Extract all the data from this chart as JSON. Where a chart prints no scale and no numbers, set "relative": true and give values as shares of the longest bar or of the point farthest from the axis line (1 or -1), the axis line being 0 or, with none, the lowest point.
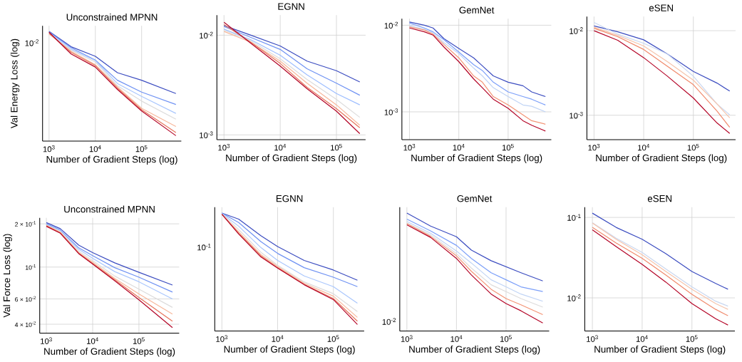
{
  "chart_data": [
    {
      "type": "line",
      "title": "Unconstrained MPNN",
      "xlabel": "Number of Gradient Steps (log)",
      "ylabel": "Val Energy Loss (log)",
      "log": "x",
      "grid": "x",
      "relative": true,
      "xlim": [
        724,
        720000
      ],
      "xticks": [
        {
          "value": 1000,
          "label": "10$^{3}$"
        },
        {
          "value": 10000,
          "label": "10$^{4}$"
        },
        {
          "value": 100000,
          "label": "10$^{5}$"
        }
      ],
      "annotations": [
        "10$^{-2}$"
      ],
      "x": [
        1000,
        3000,
        10000,
        30000,
        100000,
        550000
      ],
      "series": [
        {
          "color": "#3b4cc0",
          "values": [
            1,
            0.859,
            0.772,
            0.623,
            0.554,
            0.433
          ]
        },
        {
          "color": "#6f92f3",
          "values": [
            0.994,
            0.85,
            0.738,
            0.554,
            0.446,
            0.333
          ]
        },
        {
          "color": "#aac7fd",
          "values": [
            0.984,
            0.836,
            0.733,
            0.524,
            0.407,
            0.252
          ]
        },
        {
          "color": "#dddcdc",
          "values": [
            0.975,
            0.827,
            0.72,
            0.504,
            0.364,
            0.199
          ]
        },
        {
          "color": "#f7b89c",
          "values": [
            0.975,
            0.818,
            0.695,
            0.493,
            0.298,
            0.133
          ]
        },
        {
          "color": "#e7745b",
          "values": [
            0.984,
            0.808,
            0.688,
            0.482,
            0.285,
            0.078
          ]
        },
        {
          "color": "#b40426",
          "values": [
            0.991,
            0.793,
            0.674,
            0.47,
            0.274,
            0.049
          ]
        }
      ]
    },
    {
      "type": "line",
      "title": "EGNN",
      "xlabel": "Number of Gradient Steps (log)",
      "log": "xy",
      "grid": true,
      "xlim": [
        747,
        330000
      ],
      "ylim": [
        0.000896,
        0.0159
      ],
      "xticks": [
        {
          "value": 1000,
          "label": "10$^{3}$"
        },
        {
          "value": 10000,
          "label": "10$^{4}$"
        },
        {
          "value": 100000,
          "label": "10$^{5}$"
        }
      ],
      "yticks": [
        {
          "value": 0.001,
          "label": "10$^{-3}$"
        },
        {
          "value": 0.01,
          "label": "10$^{-2}$"
        }
      ],
      "x": [
        1000,
        3000,
        10000,
        30000,
        100000,
        260000
      ],
      "series": [
        {
          "color": "#3b4cc0",
          "values": [
            0.0125,
            0.01,
            0.0078,
            0.0055,
            0.0044,
            0.0034
          ]
        },
        {
          "color": "#6f92f3",
          "values": [
            0.0122,
            0.0095,
            0.0072,
            0.0046,
            0.0033,
            0.0025
          ]
        },
        {
          "color": "#9ebeff",
          "values": [
            0.0115,
            0.009,
            0.0063,
            0.004,
            0.0026,
            0.002
          ]
        },
        {
          "color": "#dddcdc",
          "values": [
            0.0112,
            0.0088,
            0.0058,
            0.0036,
            0.00227,
            0.0015
          ]
        },
        {
          "color": "#f7b89c",
          "values": [
            0.0109,
            0.0085,
            0.0055,
            0.0033,
            0.002,
            0.00125
          ]
        },
        {
          "color": "#e7745b",
          "values": [
            0.0128,
            0.0085,
            0.0052,
            0.003,
            0.00183,
            0.00118
          ]
        },
        {
          "color": "#b40426",
          "values": [
            0.0135,
            0.0083,
            0.0049,
            0.0029,
            0.00173,
            0.00103
          ]
        }
      ]
    },
    {
      "type": "line",
      "title": "GemNet",
      "xlabel": "Number of Gradient Steps (log)",
      "log": "xy",
      "grid": true,
      "xlim": [
        702,
        750000
      ],
      "ylim": [
        0.000478,
        0.0119
      ],
      "xticks": [
        {
          "value": 1000,
          "label": "10$^{3}$"
        },
        {
          "value": 10000,
          "label": "10$^{4}$"
        },
        {
          "value": 100000,
          "label": "10$^{5}$"
        }
      ],
      "yticks": [
        {
          "value": 0.001,
          "label": "10$^{-3}$"
        },
        {
          "value": 0.01,
          "label": "10$^{-2}$"
        }
      ],
      "x": [
        1000,
        2000,
        3000,
        5000,
        10000,
        20000,
        30000,
        50000,
        100000,
        200000,
        300000,
        570000
      ],
      "series": [
        {
          "color": "#3b4cc0",
          "values": [
            0.0109,
            0.01,
            0.0093,
            0.007,
            0.0054,
            0.0042,
            0.0034,
            0.0026,
            0.0022,
            0.002,
            0.0017,
            0.0015
          ]
        },
        {
          "color": "#7b9ff9",
          "values": [
            0.0106,
            0.0093,
            0.0084,
            0.0068,
            0.0049,
            0.0035,
            0.003,
            0.0022,
            0.0017,
            0.0015,
            0.0014,
            0.0012
          ]
        },
        {
          "color": "#c0d4f5",
          "values": [
            0.0099,
            0.009,
            0.0082,
            0.0063,
            0.0047,
            0.0032,
            0.0026,
            0.0019,
            0.0015,
            0.0012,
            0.00116,
            0.001
          ]
        },
        {
          "color": "#f39475",
          "values": [
            0.0096,
            0.0088,
            0.0079,
            0.006,
            0.0042,
            0.0026,
            0.0022,
            0.0015,
            0.0012,
            0.00092,
            0.00079,
            0.00072
          ]
        },
        {
          "color": "#b40426",
          "values": [
            0.0093,
            0.0084,
            0.0077,
            0.0056,
            0.0038,
            0.0024,
            0.0019,
            0.0014,
            0.0011,
            0.00079,
            0.0007,
            0.0006
          ]
        }
      ]
    },
    {
      "type": "line",
      "title": "eSEN",
      "xlabel": "Number of Gradient Steps (log)",
      "log": "xy",
      "grid": true,
      "xlim": [
        718,
        710000
      ],
      "ylim": [
        0.000515,
        0.0147
      ],
      "xticks": [
        {
          "value": 1000,
          "label": "10$^{3}$"
        },
        {
          "value": 10000,
          "label": "10$^{4}$"
        },
        {
          "value": 100000,
          "label": "10$^{5}$"
        }
      ],
      "yticks": [
        {
          "value": 0.001,
          "label": "10$^{-3}$"
        },
        {
          "value": 0.01,
          "label": "10$^{-2}$"
        }
      ],
      "x": [
        1000,
        3000,
        10000,
        30000,
        100000,
        300000,
        540000
      ],
      "series": [
        {
          "color": "#3b4cc0",
          "values": [
            0.0114,
            0.0097,
            0.0078,
            0.0053,
            0.0033,
            0.0024,
            0.00193
          ]
        },
        {
          "color": "#c9d7f0",
          "values": [
            0.0125,
            0.0091,
            0.0071,
            0.0053,
            0.0029,
            0.00136,
            0.00101
          ]
        },
        {
          "color": "#f5c4ac",
          "values": [
            0.011,
            0.0088,
            0.0066,
            0.0043,
            0.0026,
            0.00136,
            0.00093
          ]
        },
        {
          "color": "#f08a6c",
          "values": [
            0.0107,
            0.0085,
            0.006,
            0.0038,
            0.0023,
            0.00112,
            0.00072
          ]
        },
        {
          "color": "#b40426",
          "values": [
            0.01,
            0.0077,
            0.0048,
            0.0029,
            0.0016,
            0.00081,
            0.00061
          ]
        }
      ]
    },
    {
      "type": "line",
      "title": "Unconstrained MPNN",
      "xlabel": "Number of Gradient Steps (log)",
      "ylabel": "Val Force Loss (log)",
      "log": "xy",
      "grid": true,
      "xlim": [
        718,
        740000
      ],
      "ylim": [
        0.0347,
        0.22
      ],
      "xticks": [
        {
          "value": 1000,
          "label": "10$^{3}$"
        },
        {
          "value": 10000,
          "label": "10$^{4}$"
        },
        {
          "value": 100000,
          "label": "10$^{5}$"
        }
      ],
      "yticks": [
        {
          "value": 0.04,
          "label": "4 × 10$^{-2}$"
        },
        {
          "value": 0.06,
          "label": "6 × 10$^{-2}$"
        },
        {
          "value": 0.1,
          "label": "10$^{-1}$"
        },
        {
          "value": 0.2,
          "label": "2 × 10$^{-1}$"
        }
      ],
      "x": [
        1000,
        2000,
        5000,
        10000,
        30000,
        100000,
        530000
      ],
      "series": [
        {
          "color": "#3b4cc0",
          "values": [
            0.204,
            0.185,
            0.142,
            0.126,
            0.107,
            0.092,
            0.075
          ]
        },
        {
          "color": "#6f92f3",
          "values": [
            0.2,
            0.181,
            0.136,
            0.12,
            0.099,
            0.085,
            0.067
          ]
        },
        {
          "color": "#aac7fd",
          "values": [
            0.198,
            0.179,
            0.133,
            0.115,
            0.093,
            0.079,
            0.06
          ]
        },
        {
          "color": "#dddcdc",
          "values": [
            0.196,
            0.177,
            0.129,
            0.111,
            0.0866,
            0.0702,
            0.0524
          ]
        },
        {
          "color": "#f7b89c",
          "values": [
            0.195,
            0.175,
            0.126,
            0.108,
            0.0833,
            0.065,
            0.0471
          ]
        },
        {
          "color": "#e7745b",
          "values": [
            0.194,
            0.173,
            0.125,
            0.106,
            0.0817,
            0.0614,
            0.042
          ]
        },
        {
          "color": "#b40426",
          "values": [
            0.192,
            0.172,
            0.124,
            0.105,
            0.0802,
            0.0591,
            0.0379
          ]
        }
      ]
    },
    {
      "type": "line",
      "title": "EGNN",
      "xlabel": "Number of Gradient Steps (log)",
      "log": "x",
      "grid": "x",
      "relative": true,
      "xlim": [
        745,
        357000
      ],
      "xticks": [
        {
          "value": 1000,
          "label": "10$^{3}$"
        },
        {
          "value": 10000,
          "label": "10$^{4}$"
        },
        {
          "value": 100000,
          "label": "10$^{5}$"
        }
      ],
      "annotations": [
        "10$^{-1}$"
      ],
      "x": [
        1000,
        2000,
        5000,
        10000,
        30000,
        100000,
        270000
      ],
      "series": [
        {
          "color": "#3b4cc0",
          "values": [
            1,
            0.949,
            0.808,
            0.716,
            0.598,
            0.517,
            0.43
          ]
        },
        {
          "color": "#6f92f3",
          "values": [
            1,
            0.92,
            0.758,
            0.658,
            0.537,
            0.456,
            0.376
          ]
        },
        {
          "color": "#aac7fd",
          "values": [
            0.996,
            0.889,
            0.708,
            0.598,
            0.467,
            0.376,
            0.235
          ]
        },
        {
          "color": "#dddcdc",
          "values": [
            0.993,
            0.86,
            0.668,
            0.557,
            0.416,
            0.316,
            0.165
          ]
        },
        {
          "color": "#f7b89c",
          "values": [
            0.99,
            0.84,
            0.648,
            0.547,
            0.405,
            0.295,
            0.115
          ]
        },
        {
          "color": "#e7745b",
          "values": [
            0.99,
            0.829,
            0.638,
            0.537,
            0.396,
            0.275,
            0.083
          ]
        },
        {
          "color": "#b40426",
          "values": [
            0.99,
            0.823,
            0.628,
            0.533,
            0.392,
            0.266,
            0.055
          ]
        }
      ]
    },
    {
      "type": "line",
      "title": "GemNet",
      "xlabel": "Number of Gradient Steps (log)",
      "log": "x",
      "grid": "x",
      "relative": true,
      "xlim": [
        718,
        740000
      ],
      "xticks": [
        {
          "value": 1000,
          "label": "10$^{3}$"
        },
        {
          "value": 10000,
          "label": "10$^{4}$"
        },
        {
          "value": 100000,
          "label": "10$^{5}$"
        }
      ],
      "annotations": [
        "10$^{-2}$"
      ],
      "x": [
        1000,
        3000,
        10000,
        20000,
        50000,
        100000,
        200000,
        550000
      ],
      "series": [
        {
          "color": "#3b4cc0",
          "values": [
            1,
            0.89,
            0.799,
            0.686,
            0.596,
            0.545,
            0.494,
            0.424
          ]
        },
        {
          "color": "#7b9ff9",
          "values": [
            0.949,
            0.849,
            0.726,
            0.615,
            0.494,
            0.434,
            0.374,
            0.334
          ]
        },
        {
          "color": "#c0d4f5",
          "values": [
            0.929,
            0.829,
            0.678,
            0.576,
            0.434,
            0.374,
            0.313,
            0.252
          ]
        },
        {
          "color": "#dddcdc",
          "values": [
            0.915,
            0.815,
            0.656,
            0.533,
            0.392,
            0.334,
            0.275,
            0.202
          ]
        },
        {
          "color": "#f39475",
          "values": [
            0.911,
            0.803,
            0.637,
            0.506,
            0.354,
            0.275,
            0.222,
            0.139
          ]
        },
        {
          "color": "#b40426",
          "values": [
            0.9,
            0.794,
            0.615,
            0.475,
            0.313,
            0.232,
            0.171,
            0.068
          ]
        }
      ]
    },
    {
      "type": "line",
      "title": "eSEN",
      "xlabel": "Number of Gradient Steps (log)",
      "log": "xy",
      "grid": true,
      "xlim": [
        703,
        730000
      ],
      "ylim": [
        0.00388,
        0.134
      ],
      "xticks": [
        {
          "value": 1000,
          "label": "10$^{3}$"
        },
        {
          "value": 10000,
          "label": "10$^{4}$"
        },
        {
          "value": 100000,
          "label": "10$^{5}$"
        }
      ],
      "yticks": [
        {
          "value": 0.01,
          "label": "10$^{-2}$"
        },
        {
          "value": 0.1,
          "label": "10$^{-1}$"
        }
      ],
      "x": [
        1000,
        3000,
        10000,
        30000,
        100000,
        300000,
        530000
      ],
      "series": [
        {
          "color": "#3b4cc0",
          "values": [
            0.113,
            0.0752,
            0.0535,
            0.0355,
            0.0213,
            0.0151,
            0.0128
          ]
        },
        {
          "color": "#c9d7f0",
          "values": [
            0.086,
            0.0553,
            0.0367,
            0.0228,
            0.0137,
            0.0091,
            0.0079
          ]
        },
        {
          "color": "#f5c4ac",
          "values": [
            0.085,
            0.0535,
            0.0343,
            0.0213,
            0.0128,
            0.0085,
            0.0072
          ]
        },
        {
          "color": "#f08a6c",
          "values": [
            0.0752,
            0.0482,
            0.031,
            0.0192,
            0.0111,
            0.0072,
            0.006
          ]
        },
        {
          "color": "#b40426",
          "values": [
            0.0702,
            0.0435,
            0.0261,
            0.0157,
            0.0085,
            0.0055,
            0.0046
          ]
        }
      ]
    }
  ]
}
